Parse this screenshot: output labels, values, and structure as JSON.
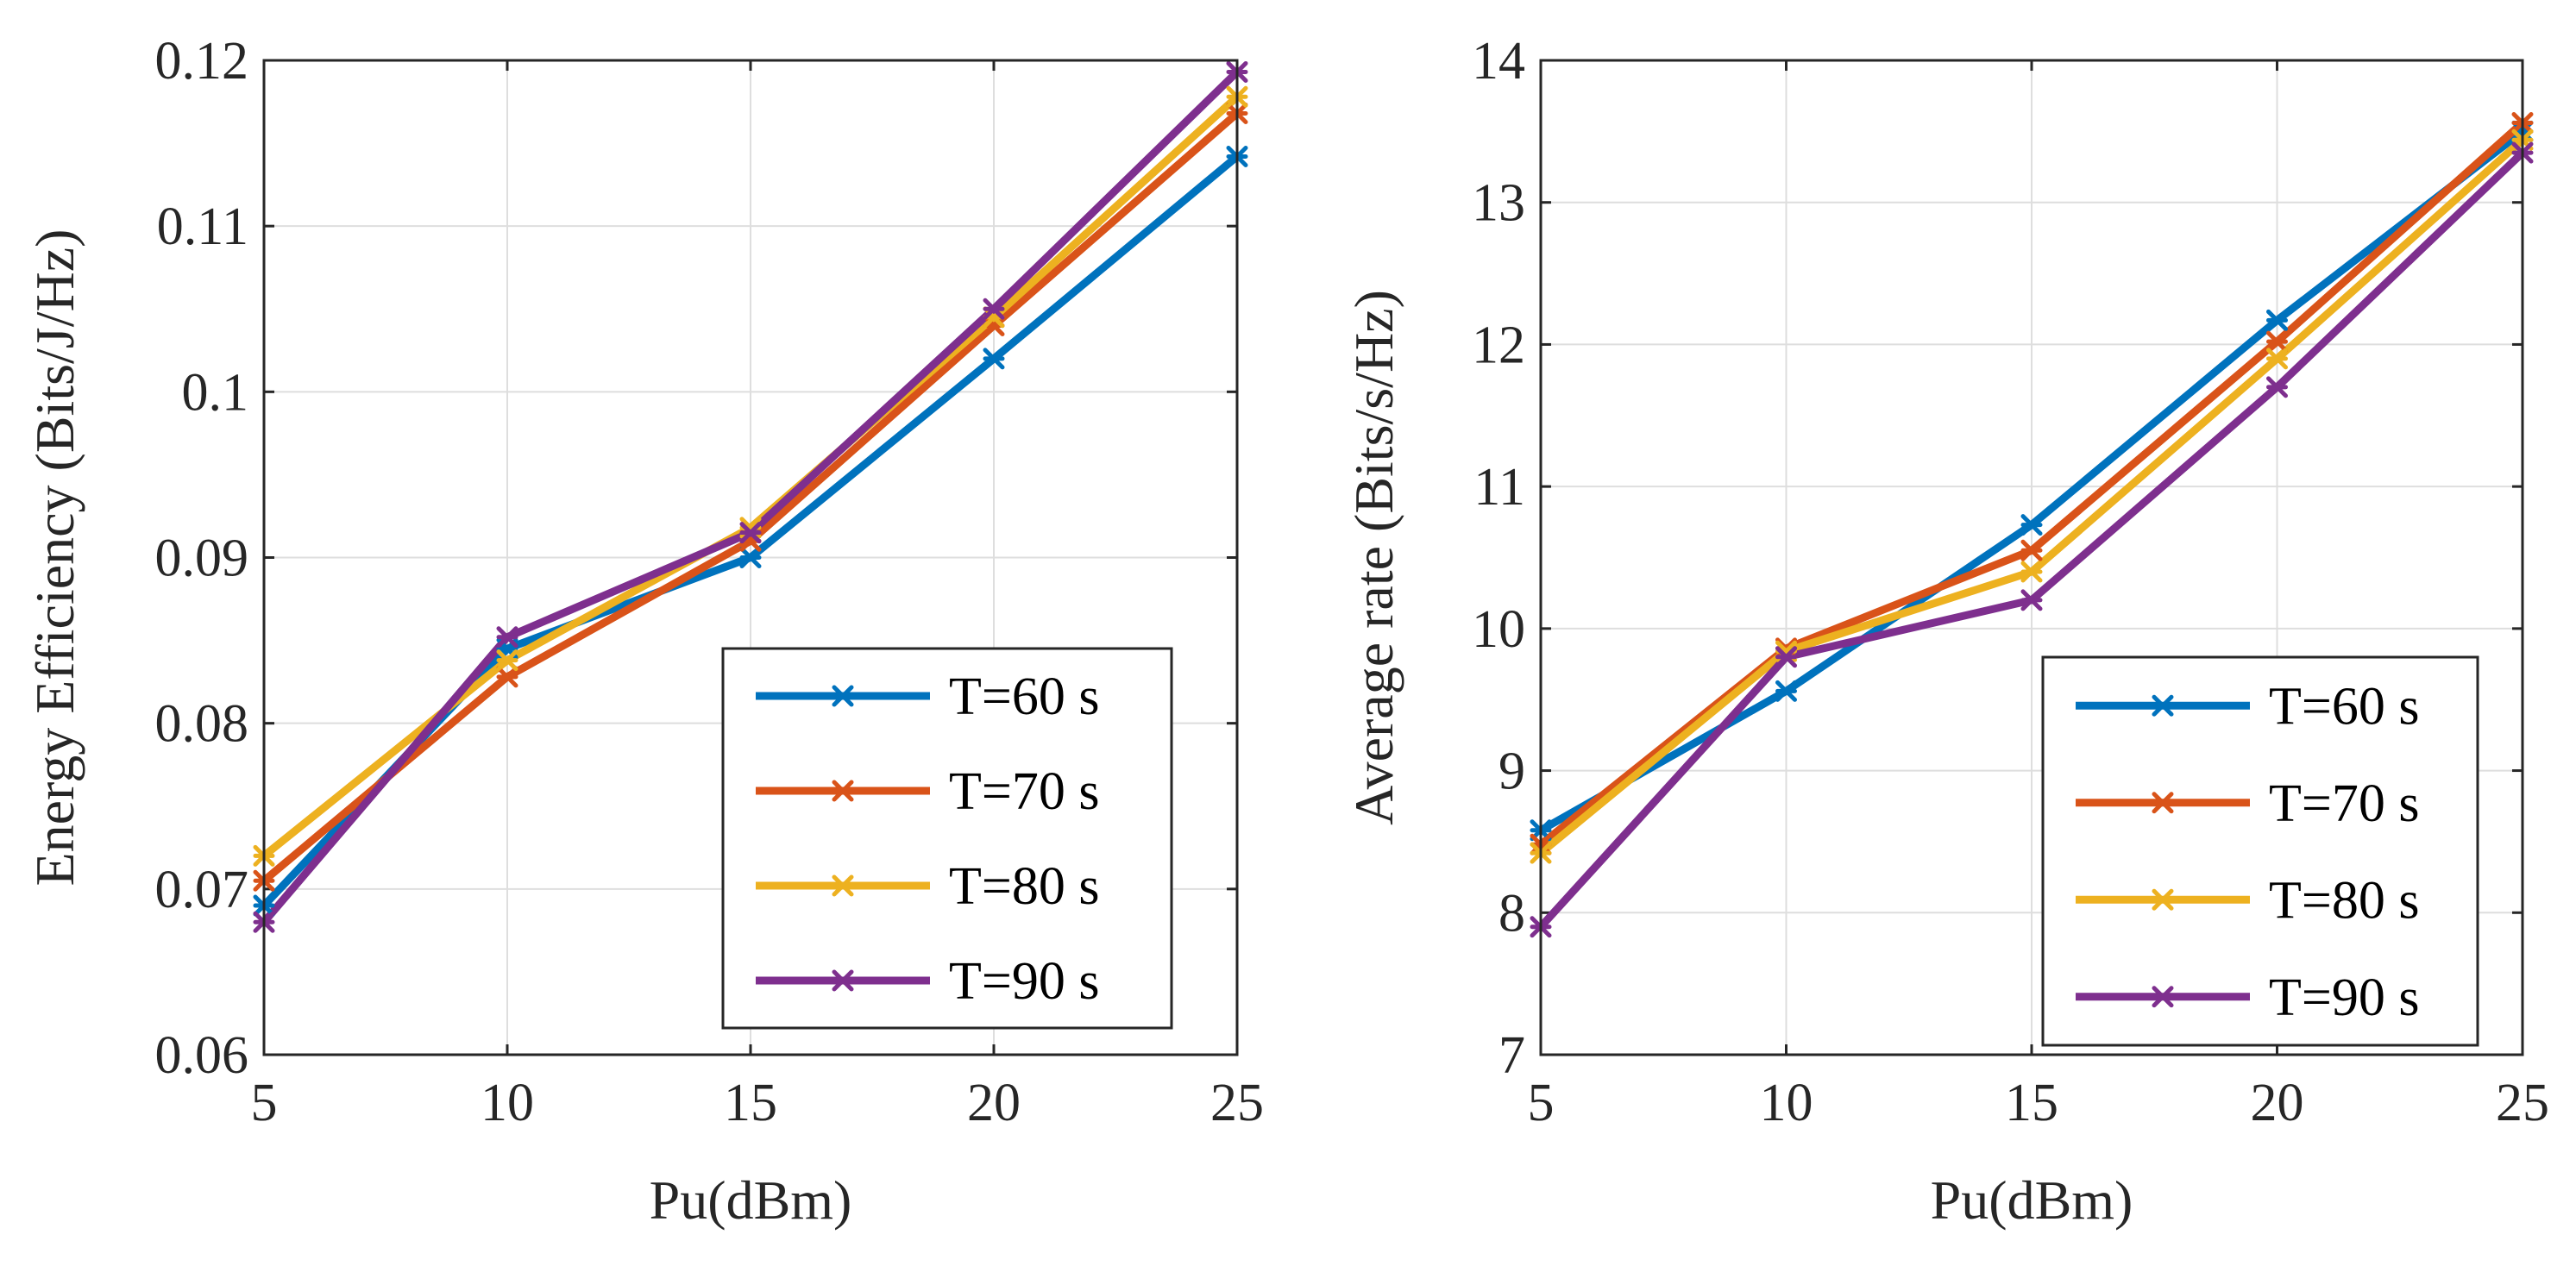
{
  "chart_data": [
    {
      "type": "line",
      "title": "",
      "xlabel": "Pu(dBm)",
      "ylabel": "Energy Efficiency (Bits/J/Hz)",
      "x": [
        5,
        10,
        15,
        20,
        25
      ],
      "xlim": [
        5,
        25
      ],
      "ylim": [
        0.06,
        0.12
      ],
      "xticks": [
        5,
        10,
        15,
        20,
        25
      ],
      "xtick_labels": [
        "5",
        "10",
        "15",
        "20",
        "25"
      ],
      "yticks": [
        0.06,
        0.07,
        0.08,
        0.09,
        0.1,
        0.11,
        0.12
      ],
      "ytick_labels": [
        "0.06",
        "0.07",
        "0.08",
        "0.09",
        "0.1",
        "0.11",
        "0.12"
      ],
      "grid": true,
      "legend_position": "bottom-right",
      "series": [
        {
          "name": "T=60 s",
          "color": "#0072BD",
          "values": [
            0.069,
            0.0845,
            0.09,
            0.102,
            0.1142
          ]
        },
        {
          "name": "T=70 s",
          "color": "#D95319",
          "values": [
            0.0705,
            0.0828,
            0.091,
            0.104,
            0.1168
          ]
        },
        {
          "name": "T=80 s",
          "color": "#EDB120",
          "values": [
            0.072,
            0.0838,
            0.0918,
            0.1045,
            0.1178
          ]
        },
        {
          "name": "T=90 s",
          "color": "#7E2F8E",
          "values": [
            0.068,
            0.0852,
            0.0915,
            0.105,
            0.1193
          ]
        }
      ]
    },
    {
      "type": "line",
      "title": "",
      "xlabel": "Pu(dBm)",
      "ylabel": "Average rate (Bits/s/Hz)",
      "x": [
        5,
        10,
        15,
        20,
        25
      ],
      "xlim": [
        5,
        25
      ],
      "ylim": [
        7,
        14
      ],
      "xticks": [
        5,
        10,
        15,
        20,
        25
      ],
      "xtick_labels": [
        "5",
        "10",
        "15",
        "20",
        "25"
      ],
      "yticks": [
        7,
        8,
        9,
        10,
        11,
        12,
        13,
        14
      ],
      "ytick_labels": [
        "7",
        "8",
        "9",
        "10",
        "11",
        "12",
        "13",
        "14"
      ],
      "grid": true,
      "legend_position": "bottom-right",
      "series": [
        {
          "name": "T=60 s",
          "color": "#0072BD",
          "values": [
            8.58,
            9.56,
            10.73,
            12.17,
            13.5
          ]
        },
        {
          "name": "T=70 s",
          "color": "#D95319",
          "values": [
            8.48,
            9.86,
            10.55,
            12.02,
            13.56
          ]
        },
        {
          "name": "T=80 s",
          "color": "#EDB120",
          "values": [
            8.42,
            9.84,
            10.4,
            11.9,
            13.44
          ]
        },
        {
          "name": "T=90 s",
          "color": "#7E2F8E",
          "values": [
            7.9,
            9.8,
            10.2,
            11.7,
            13.35
          ]
        }
      ]
    }
  ]
}
